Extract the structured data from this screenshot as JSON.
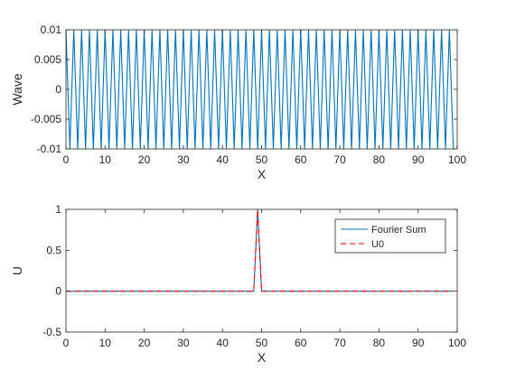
{
  "chart_data": [
    {
      "type": "line",
      "title": "",
      "xlabel": "X",
      "ylabel": "Wave",
      "xlim": [
        0,
        100
      ],
      "ylim": [
        -0.01,
        0.01
      ],
      "xticks": [
        0,
        10,
        20,
        30,
        40,
        50,
        60,
        70,
        80,
        90,
        100
      ],
      "xtick_labels": [
        "0",
        "10",
        "20",
        "30",
        "40",
        "50",
        "60",
        "70",
        "80",
        "90",
        "100"
      ],
      "yticks": [
        0.01,
        0.005,
        0,
        -0.005,
        -0.01
      ],
      "ytick_labels": [
        "0.01",
        "0.005",
        "0",
        "-0.005",
        "-0.01"
      ],
      "grid": false,
      "series": [
        {
          "color": "#0072bd",
          "style": "solid",
          "x": [
            0,
            1,
            2,
            3,
            4,
            5,
            6,
            7,
            8,
            9,
            10,
            11,
            12,
            13,
            14,
            15,
            16,
            17,
            18,
            19,
            20,
            21,
            22,
            23,
            24,
            25,
            26,
            27,
            28,
            29,
            30,
            31,
            32,
            33,
            34,
            35,
            36,
            37,
            38,
            39,
            40,
            41,
            42,
            43,
            44,
            45,
            46,
            47,
            48,
            49,
            50,
            51,
            52,
            53,
            54,
            55,
            56,
            57,
            58,
            59,
            60,
            61,
            62,
            63,
            64,
            65,
            66,
            67,
            68,
            69,
            70,
            71,
            72,
            73,
            74,
            75,
            76,
            77,
            78,
            79,
            80,
            81,
            82,
            83,
            84,
            85,
            86,
            87,
            88,
            89,
            90,
            91,
            92,
            93,
            94,
            95,
            96,
            97,
            98,
            99
          ],
          "y": [
            0.01,
            -0.01,
            0.01,
            -0.01,
            0.01,
            -0.01,
            0.01,
            -0.01,
            0.01,
            -0.01,
            0.01,
            -0.01,
            0.01,
            -0.01,
            0.01,
            -0.01,
            0.01,
            -0.01,
            0.01,
            -0.01,
            0.01,
            -0.01,
            0.01,
            -0.01,
            0.01,
            -0.01,
            0.01,
            -0.01,
            0.01,
            -0.01,
            0.01,
            -0.01,
            0.01,
            -0.01,
            0.01,
            -0.01,
            0.01,
            -0.01,
            0.01,
            -0.01,
            0.01,
            -0.01,
            0.01,
            -0.01,
            0.01,
            -0.01,
            0.01,
            -0.01,
            0.01,
            -0.01,
            0.01,
            -0.01,
            0.01,
            -0.01,
            0.01,
            -0.01,
            0.01,
            -0.01,
            0.01,
            -0.01,
            0.01,
            -0.01,
            0.01,
            -0.01,
            0.01,
            -0.01,
            0.01,
            -0.01,
            0.01,
            -0.01,
            0.01,
            -0.01,
            0.01,
            -0.01,
            0.01,
            -0.01,
            0.01,
            -0.01,
            0.01,
            -0.01,
            0.01,
            -0.01,
            0.01,
            -0.01,
            0.01,
            -0.01,
            0.01,
            -0.01,
            0.01,
            -0.01,
            0.01,
            -0.01,
            0.01,
            -0.01,
            0.01,
            -0.01,
            0.01,
            -0.01,
            0.01,
            -0.01
          ]
        }
      ]
    },
    {
      "type": "line",
      "title": "",
      "xlabel": "X",
      "ylabel": "U",
      "xlim": [
        0,
        100
      ],
      "ylim": [
        -0.5,
        1
      ],
      "xticks": [
        0,
        10,
        20,
        30,
        40,
        50,
        60,
        70,
        80,
        90,
        100
      ],
      "xtick_labels": [
        "0",
        "10",
        "20",
        "30",
        "40",
        "50",
        "60",
        "70",
        "80",
        "90",
        "100"
      ],
      "yticks": [
        1,
        0.5,
        0,
        -0.5
      ],
      "ytick_labels": [
        "1",
        "0.5",
        "0",
        "-0.5"
      ],
      "grid": false,
      "legend": "top-right",
      "series": [
        {
          "name": "Fourier Sum",
          "color": "#0072bd",
          "style": "solid",
          "x": [
            0,
            48,
            49,
            50,
            99
          ],
          "y": [
            0,
            0,
            1,
            0,
            0
          ]
        },
        {
          "name": "U0",
          "color": "#ff0000",
          "style": "dashed",
          "x": [
            0,
            48,
            49,
            50,
            99
          ],
          "y": [
            0,
            0,
            1,
            0,
            0
          ]
        }
      ]
    }
  ]
}
